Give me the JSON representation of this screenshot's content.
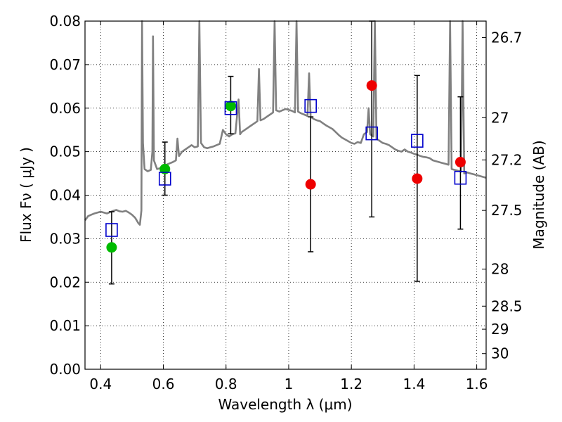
{
  "chart_data": {
    "type": "scatter",
    "xlabel": "Wavelength  λ (μm)",
    "ylabel": "Flux  Fν  ( μJy )",
    "y2label": "Magnitude (AB)",
    "xlim": [
      0.35,
      1.63
    ],
    "ylim": [
      0.0,
      0.08
    ],
    "grid": true,
    "x_ticks": [
      0.4,
      0.6,
      0.8,
      1.0,
      1.2,
      1.4,
      1.6
    ],
    "x_tick_labels": [
      "0.4",
      "0.6",
      "0.8",
      "1",
      "1.2",
      "1.4",
      "1.6"
    ],
    "y_ticks": [
      0.0,
      0.01,
      0.02,
      0.03,
      0.04,
      0.05,
      0.06,
      0.07,
      0.08
    ],
    "y_tick_labels": [
      "0.00",
      "0.01",
      "0.02",
      "0.03",
      "0.04",
      "0.05",
      "0.06",
      "0.07",
      "0.08"
    ],
    "y2_ticks": [
      {
        "label": "26.7",
        "flux": 0.0762
      },
      {
        "label": "27",
        "flux": 0.0578
      },
      {
        "label": "27.2",
        "flux": 0.0481
      },
      {
        "label": "27.5",
        "flux": 0.0365
      },
      {
        "label": "28",
        "flux": 0.023
      },
      {
        "label": "28.5",
        "flux": 0.0145
      },
      {
        "label": "29",
        "flux": 0.0092
      },
      {
        "label": "30",
        "flux": 0.0036
      }
    ],
    "colors": {
      "model": "#808080",
      "green": "#00bb00",
      "red": "#ee0000",
      "box": "#0000cc",
      "errorbar": "#000000"
    },
    "series": [
      {
        "style": "line",
        "points": [
          [
            0.35,
            0.0342
          ],
          [
            0.36,
            0.0352
          ],
          [
            0.37,
            0.0355
          ],
          [
            0.38,
            0.0358
          ],
          [
            0.39,
            0.036
          ],
          [
            0.4,
            0.0362
          ],
          [
            0.41,
            0.036
          ],
          [
            0.42,
            0.0358
          ],
          [
            0.43,
            0.0361
          ],
          [
            0.44,
            0.0364
          ],
          [
            0.45,
            0.0366
          ],
          [
            0.46,
            0.0363
          ],
          [
            0.47,
            0.0362
          ],
          [
            0.48,
            0.0364
          ],
          [
            0.49,
            0.036
          ],
          [
            0.5,
            0.0355
          ],
          [
            0.51,
            0.0348
          ],
          [
            0.52,
            0.0336
          ],
          [
            0.525,
            0.0332
          ],
          [
            0.53,
            0.0365
          ],
          [
            0.532,
            0.08
          ],
          [
            0.535,
            0.052
          ],
          [
            0.54,
            0.046
          ],
          [
            0.55,
            0.0455
          ],
          [
            0.56,
            0.0458
          ],
          [
            0.565,
            0.05
          ],
          [
            0.567,
            0.0765
          ],
          [
            0.57,
            0.048
          ],
          [
            0.58,
            0.046
          ],
          [
            0.59,
            0.0462
          ],
          [
            0.6,
            0.046
          ],
          [
            0.61,
            0.047
          ],
          [
            0.62,
            0.0473
          ],
          [
            0.63,
            0.0476
          ],
          [
            0.64,
            0.048
          ],
          [
            0.645,
            0.053
          ],
          [
            0.65,
            0.049
          ],
          [
            0.66,
            0.05
          ],
          [
            0.67,
            0.0505
          ],
          [
            0.68,
            0.051
          ],
          [
            0.69,
            0.0515
          ],
          [
            0.7,
            0.051
          ],
          [
            0.71,
            0.0512
          ],
          [
            0.715,
            0.08
          ],
          [
            0.72,
            0.052
          ],
          [
            0.73,
            0.051
          ],
          [
            0.74,
            0.0508
          ],
          [
            0.75,
            0.051
          ],
          [
            0.76,
            0.0512
          ],
          [
            0.77,
            0.0515
          ],
          [
            0.78,
            0.0518
          ],
          [
            0.79,
            0.055
          ],
          [
            0.8,
            0.054
          ],
          [
            0.81,
            0.0535
          ],
          [
            0.82,
            0.054
          ],
          [
            0.83,
            0.0542
          ],
          [
            0.84,
            0.062
          ],
          [
            0.845,
            0.054
          ],
          [
            0.85,
            0.0545
          ],
          [
            0.86,
            0.055
          ],
          [
            0.87,
            0.0555
          ],
          [
            0.88,
            0.056
          ],
          [
            0.89,
            0.0565
          ],
          [
            0.9,
            0.057
          ],
          [
            0.905,
            0.069
          ],
          [
            0.91,
            0.0572
          ],
          [
            0.92,
            0.0575
          ],
          [
            0.93,
            0.058
          ],
          [
            0.94,
            0.0585
          ],
          [
            0.95,
            0.059
          ],
          [
            0.955,
            0.08
          ],
          [
            0.96,
            0.0595
          ],
          [
            0.97,
            0.0592
          ],
          [
            0.98,
            0.0595
          ],
          [
            0.99,
            0.0598
          ],
          [
            1.0,
            0.0596
          ],
          [
            1.01,
            0.0594
          ],
          [
            1.02,
            0.059
          ],
          [
            1.025,
            0.08
          ],
          [
            1.03,
            0.0592
          ],
          [
            1.04,
            0.0588
          ],
          [
            1.05,
            0.0585
          ],
          [
            1.06,
            0.0582
          ],
          [
            1.065,
            0.068
          ],
          [
            1.07,
            0.058
          ],
          [
            1.08,
            0.0575
          ],
          [
            1.09,
            0.0572
          ],
          [
            1.1,
            0.057
          ],
          [
            1.11,
            0.0565
          ],
          [
            1.12,
            0.056
          ],
          [
            1.13,
            0.0556
          ],
          [
            1.14,
            0.0552
          ],
          [
            1.15,
            0.0545
          ],
          [
            1.16,
            0.0538
          ],
          [
            1.17,
            0.0532
          ],
          [
            1.18,
            0.0528
          ],
          [
            1.19,
            0.0524
          ],
          [
            1.2,
            0.052
          ],
          [
            1.21,
            0.0518
          ],
          [
            1.22,
            0.0522
          ],
          [
            1.23,
            0.052
          ],
          [
            1.24,
            0.054
          ],
          [
            1.25,
            0.0545
          ],
          [
            1.255,
            0.06
          ],
          [
            1.26,
            0.054
          ],
          [
            1.27,
            0.0535
          ],
          [
            1.275,
            0.08
          ],
          [
            1.28,
            0.053
          ],
          [
            1.29,
            0.0525
          ],
          [
            1.3,
            0.052
          ],
          [
            1.31,
            0.0518
          ],
          [
            1.32,
            0.0515
          ],
          [
            1.33,
            0.051
          ],
          [
            1.34,
            0.0505
          ],
          [
            1.35,
            0.0502
          ],
          [
            1.36,
            0.05
          ],
          [
            1.37,
            0.0505
          ],
          [
            1.38,
            0.05
          ],
          [
            1.39,
            0.0498
          ],
          [
            1.4,
            0.0495
          ],
          [
            1.41,
            0.0493
          ],
          [
            1.42,
            0.049
          ],
          [
            1.43,
            0.0488
          ],
          [
            1.44,
            0.0487
          ],
          [
            1.45,
            0.0485
          ],
          [
            1.46,
            0.048
          ],
          [
            1.47,
            0.0478
          ],
          [
            1.48,
            0.0476
          ],
          [
            1.49,
            0.0474
          ],
          [
            1.5,
            0.0472
          ],
          [
            1.51,
            0.047
          ],
          [
            1.515,
            0.08
          ],
          [
            1.52,
            0.046
          ],
          [
            1.53,
            0.0458
          ],
          [
            1.54,
            0.0456
          ],
          [
            1.55,
            0.0454
          ],
          [
            1.555,
            0.08
          ],
          [
            1.56,
            0.045
          ],
          [
            1.57,
            0.0452
          ],
          [
            1.58,
            0.045
          ],
          [
            1.59,
            0.0448
          ],
          [
            1.6,
            0.0446
          ],
          [
            1.61,
            0.0444
          ],
          [
            1.62,
            0.0442
          ],
          [
            1.63,
            0.044
          ]
        ]
      },
      {
        "style": "green-circles",
        "x": [
          0.435,
          0.605,
          0.815
        ],
        "y": [
          0.028,
          0.046,
          0.0605
        ]
      },
      {
        "style": "red-circles",
        "x": [
          1.07,
          1.265,
          1.41,
          1.548
        ],
        "y": [
          0.0425,
          0.0652,
          0.0438,
          0.0476
        ]
      },
      {
        "style": "blue-open-squares",
        "x": [
          0.435,
          0.605,
          0.815,
          1.07,
          1.265,
          1.41,
          1.548
        ],
        "y": [
          0.032,
          0.0438,
          0.06,
          0.0605,
          0.0542,
          0.0525,
          0.044
        ]
      },
      {
        "style": "errorbars",
        "x": [
          0.435,
          0.605,
          0.815,
          1.07,
          1.265,
          1.41,
          1.548
        ],
        "low": [
          0.0196,
          0.04,
          0.0541,
          0.027,
          0.035,
          0.0202,
          0.0322
        ],
        "high": [
          0.0362,
          0.0522,
          0.0673,
          0.058,
          0.08,
          0.0675,
          0.0626
        ]
      }
    ]
  }
}
